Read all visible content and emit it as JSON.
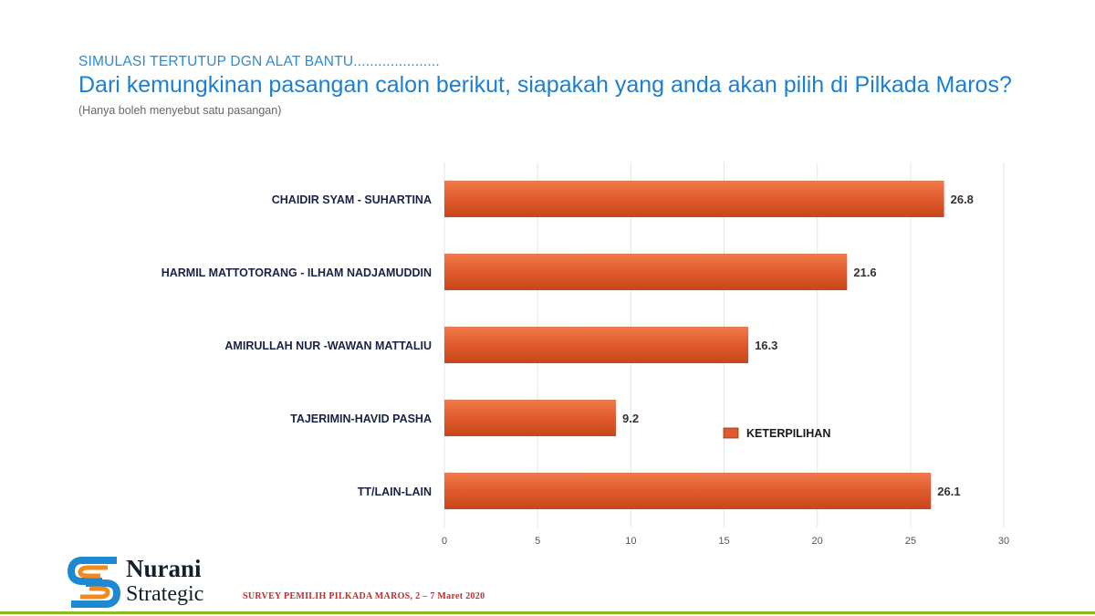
{
  "header": {
    "overline": "SIMULASI TERTUTUP DGN ALAT BANTU.....................",
    "headline": "Dari kemungkinan pasangan calon berikut,  siapakah yang anda akan pilih di Pilkada Maros?",
    "note": "(Hanya boleh menyebut satu pasangan)"
  },
  "chart_data": {
    "type": "bar",
    "orientation": "horizontal",
    "categories": [
      "CHAIDIR SYAM - SUHARTINA",
      "HARMIL MATTOTORANG - ILHAM NADJAMUDDIN",
      "AMIRULLAH NUR -WAWAN MATTALIU",
      "TAJERIMIN-HAVID PASHA",
      "TT/LAIN-LAIN"
    ],
    "series": [
      {
        "name": "KETERPILIHAN",
        "values": [
          26.8,
          21.6,
          16.3,
          9.2,
          26.1
        ],
        "color": "#e05a2b"
      }
    ],
    "value_labels": [
      "26.8",
      "21.6",
      "16.3",
      "9.2",
      "26.1"
    ],
    "xlim": [
      0,
      30
    ],
    "xticks": [
      0,
      5,
      10,
      15,
      20,
      25,
      30
    ],
    "grid": "vertical",
    "legend_position": "right-inside",
    "xlabel": "",
    "ylabel": ""
  },
  "footer": {
    "brand_name": "Nurani",
    "brand_sub": "Strategic",
    "note": "SURVEY PEMILIH PILKADA MAROS, 2 – 7 Maret 2020"
  },
  "colors": {
    "title_blue": "#1e7fd0",
    "bar_orange": "#e05a2b",
    "logo_blue": "#1e88d2",
    "logo_orange": "#f28b1e",
    "accent_green": "#8ab928"
  },
  "icons": [
    "logo-mark-icon"
  ]
}
